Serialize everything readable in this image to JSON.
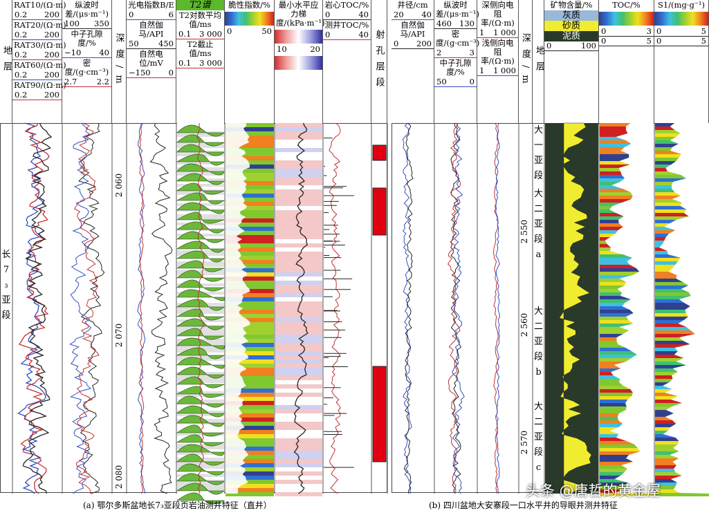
{
  "left_panel": {
    "caption": "(a) 鄂尔多斯盆地长7₃亚段页岩油测井特征（直井）",
    "columns": [
      {
        "vertical": "地层"
      },
      {
        "tracks": [
          {
            "label": "RAT10/(Ω·m)",
            "min": "0.2",
            "max": "200",
            "color": "#3050c0"
          },
          {
            "label": "RAT20/(Ω·m)",
            "min": "0.2",
            "max": "200",
            "color": "#3050c0"
          },
          {
            "label": "RAT30/(Ω·m)",
            "min": "0.2",
            "max": "200",
            "color": "#c03030"
          },
          {
            "label": "RAT60/(Ω·m)",
            "min": "0.2",
            "max": "200",
            "color": "#3050c0"
          },
          {
            "label": "RAT90/(Ω·m)",
            "min": "0.2",
            "max": "200",
            "color": "#c03030"
          }
        ]
      },
      {
        "tracks": [
          {
            "label": "纵波时差/(μs·m⁻¹)",
            "min": "100",
            "max": "350",
            "color": "#222"
          },
          {
            "label": "中子孔隙度/%",
            "min": "−10",
            "max": "40",
            "color": "#3050c0"
          },
          {
            "label": "密度/(g·cm⁻³)",
            "min": "2.7",
            "max": "2.2",
            "color": "#c03030"
          }
        ]
      },
      {
        "vertical": "深度/m"
      },
      {
        "tracks": [
          {
            "label": "光电指数B/E",
            "min": "0",
            "max": "6",
            "color": "#3050c0"
          },
          {
            "label": "自然伽马/API",
            "min": "50",
            "max": "450",
            "color": "#222"
          },
          {
            "label": "自然电位/mV",
            "min": "−150",
            "max": "0",
            "color": "#c03030"
          }
        ]
      },
      {
        "title": "T2谱",
        "tracks": [
          {
            "label": "T2对数平均值/ms",
            "min": "0.1",
            "max": "3 000",
            "color": "#c03030"
          },
          {
            "label": "T2截止值/ms",
            "min": "0.1",
            "max": "3 000",
            "color": "#c03030"
          }
        ]
      },
      {
        "tracks": [
          {
            "label": "脆性指数/%",
            "min": "0",
            "max": "50",
            "color": "#fff"
          }
        ],
        "colorbar": "spectrum"
      },
      {
        "tracks": [
          {
            "label": "最小水平应力梯度/(kPa·m⁻¹)",
            "min": "10",
            "max": "20",
            "color": "#fff"
          }
        ],
        "colorbar": "stress"
      },
      {
        "tracks": [
          {
            "label": "岩心TOC/%",
            "min": "0",
            "max": "40",
            "color": "#222"
          },
          {
            "label": "测井TOC/%",
            "min": "0",
            "max": "40",
            "color": "#c03030"
          }
        ]
      },
      {
        "vertical": "射孔层段"
      }
    ],
    "depth_ticks": [
      "2 060",
      "2 070",
      "2 080"
    ],
    "formation": "长7₃亚段"
  },
  "right_panel": {
    "caption": "(b) 四川盆地大安寨段一口水平井的导眼井测井特征",
    "columns": [
      {
        "tracks": [
          {
            "label": "井径/cm",
            "min": "20",
            "max": "40",
            "color": "#3050c0"
          },
          {
            "label": "自然伽马/API",
            "min": "0",
            "max": "200",
            "color": "#222"
          }
        ]
      },
      {
        "tracks": [
          {
            "label": "纵波时差/(μs·m⁻¹)",
            "min": "460",
            "max": "130",
            "color": "#222"
          },
          {
            "label": "密度/(g·cm⁻³)",
            "min": "2",
            "max": "3",
            "color": "#c03030"
          },
          {
            "label": "中子孔隙度/%",
            "min": "50",
            "max": "0",
            "color": "#3050c0"
          }
        ]
      },
      {
        "tracks": [
          {
            "label": "深侧向电阻率/(Ω·m)",
            "min": "1",
            "max": "1 000",
            "color": "#c03030"
          },
          {
            "label": "浅侧向电阻率/(Ω·m)",
            "min": "1",
            "max": "1 000",
            "color": "#3050c0"
          }
        ]
      },
      {
        "vertical": "深度/m"
      },
      {
        "vertical": "地层"
      },
      {
        "tracks": [
          {
            "label": "矿物含量/%",
            "min": "0",
            "max": "100",
            "color": "#222"
          }
        ],
        "legend": [
          "灰质",
          "砂质",
          "泥质"
        ]
      },
      {
        "tracks": [
          {
            "label": "TOC/%",
            "min": "0",
            "max": "3",
            "color": "#222"
          },
          {
            "min": "0",
            "max": "5",
            "color": "#222"
          }
        ],
        "colorbar": "spectrum"
      },
      {
        "tracks": [
          {
            "label": "S1/(mg·g⁻¹)",
            "min": "0",
            "max": "5",
            "color": "#222"
          },
          {
            "min": "0",
            "max": "5",
            "color": "#222"
          }
        ],
        "colorbar": "spectrum"
      }
    ],
    "depth_ticks": [
      "2 550",
      "2 560",
      "2 570"
    ],
    "strata": [
      "大一亚段",
      "大二亚段a",
      "大二亚段b",
      "大二亚段c"
    ]
  },
  "watermark": "头条 @唐哲的黄金屋"
}
